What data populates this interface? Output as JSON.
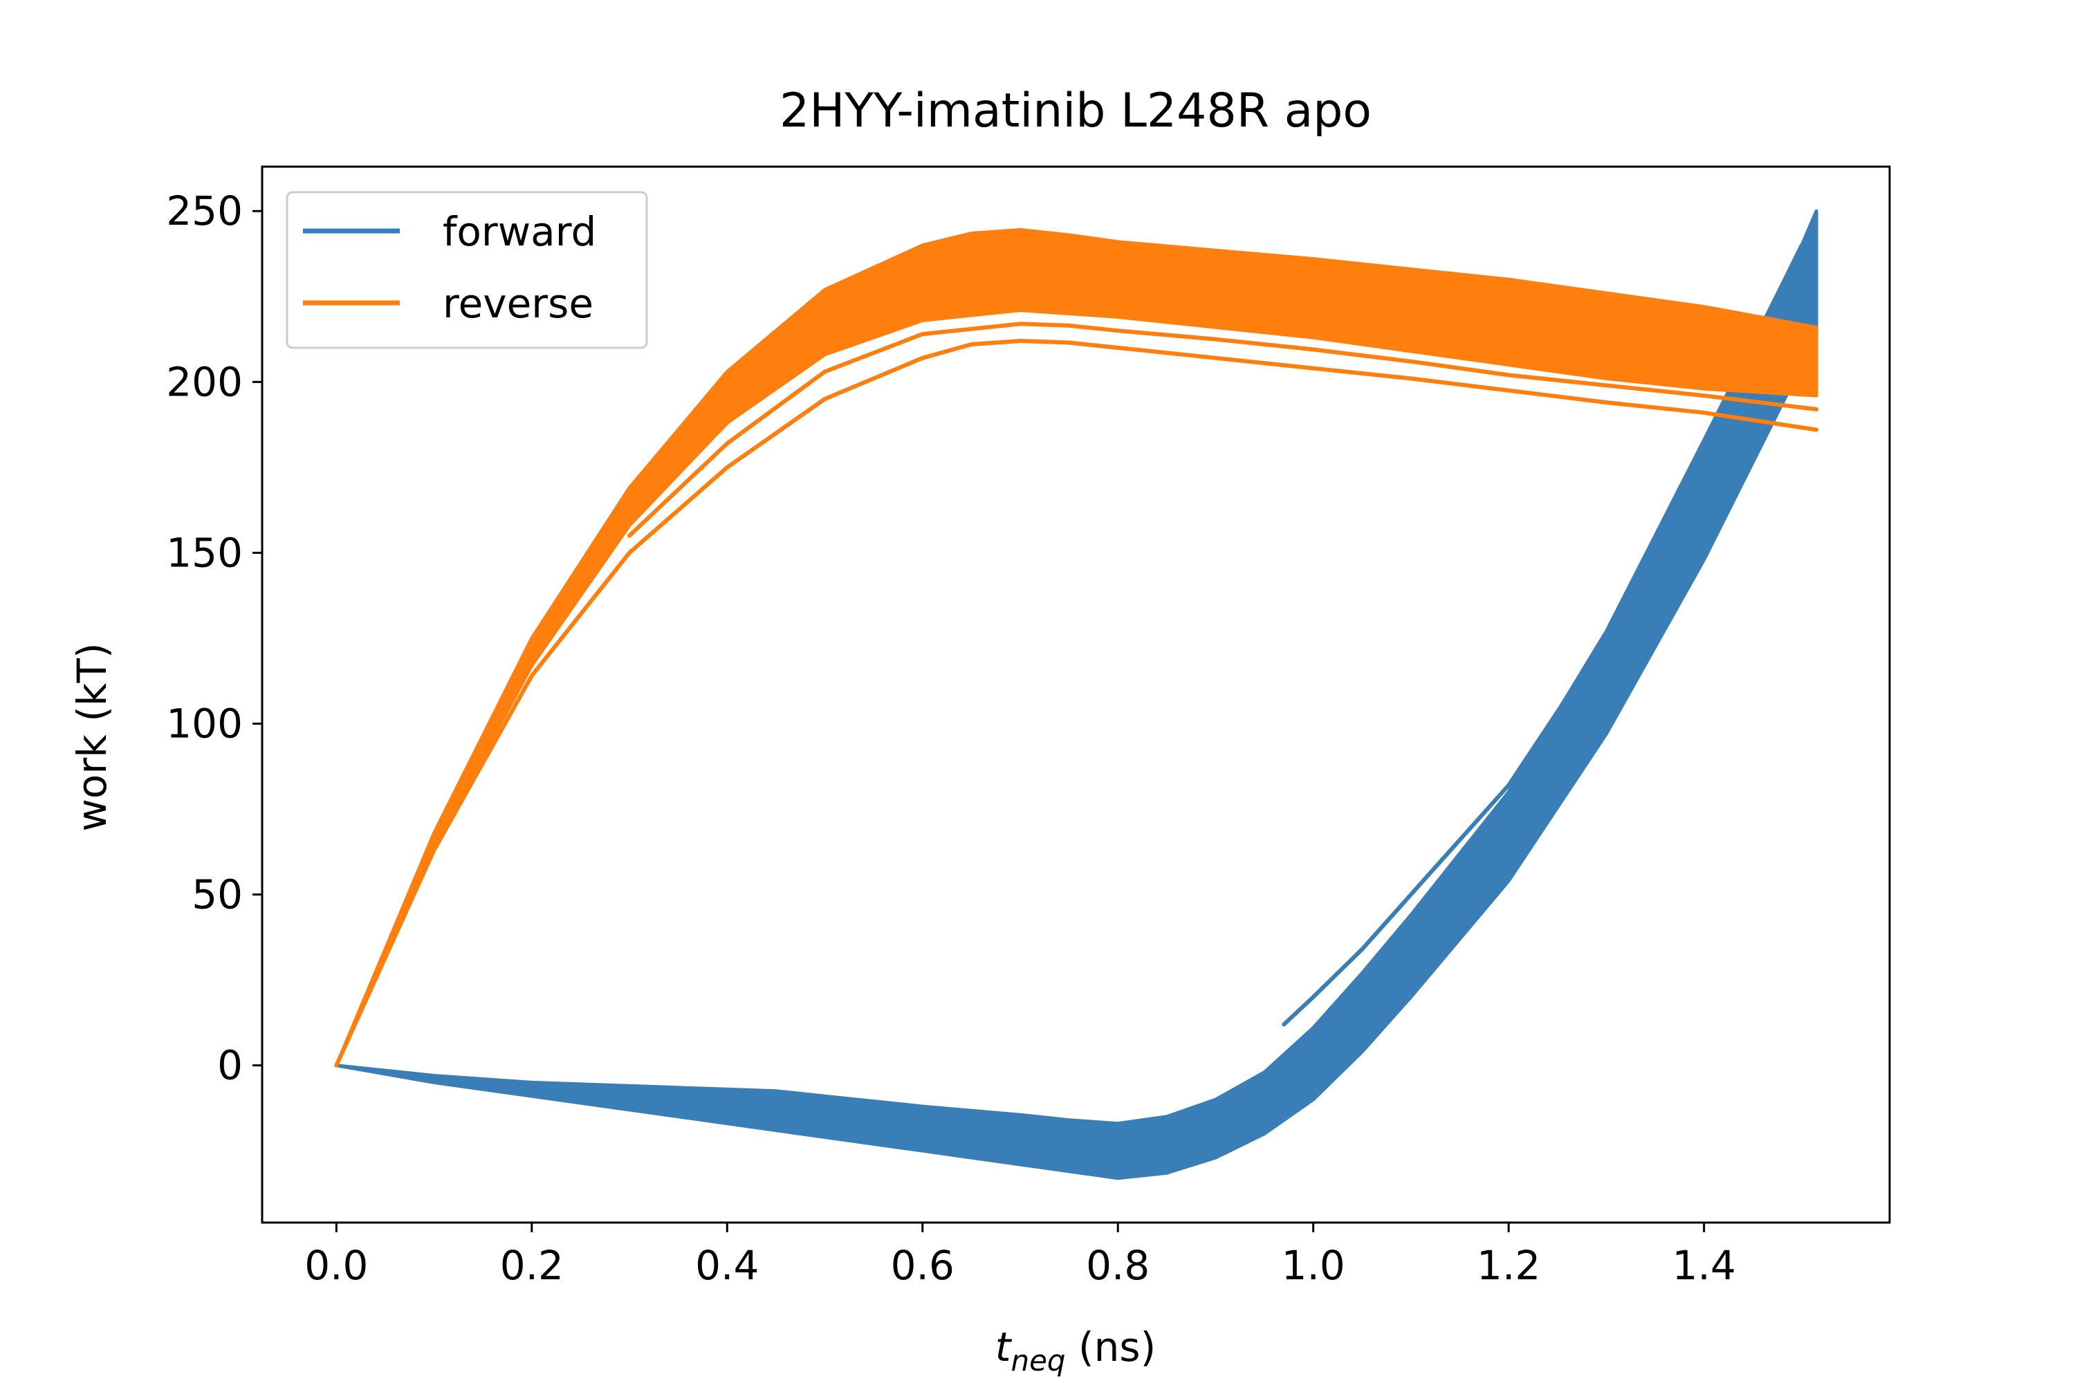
{
  "chart_data": {
    "type": "line",
    "title": "2HYY-imatinib L248R apo",
    "xlabel_main": "t",
    "xlabel_sub": "neq",
    "xlabel_units": " (ns)",
    "ylabel": "work (kT)",
    "xlim": [
      -0.076,
      1.59
    ],
    "ylim": [
      -46,
      263
    ],
    "xticks": [
      0.0,
      0.2,
      0.4,
      0.6,
      0.8,
      1.0,
      1.2,
      1.4
    ],
    "xtick_labels": [
      "0.0",
      "0.2",
      "0.4",
      "0.6",
      "0.8",
      "1.0",
      "1.2",
      "1.4"
    ],
    "yticks": [
      0,
      50,
      100,
      150,
      200,
      250
    ],
    "ytick_labels": [
      "0",
      "50",
      "100",
      "150",
      "200",
      "250"
    ],
    "grid": false,
    "legend_position": "upper-left",
    "series": [
      {
        "name": "forward",
        "color": "#3a7eb8",
        "band_upper": {
          "x": [
            0.0,
            0.1,
            0.2,
            0.3,
            0.4,
            0.45,
            0.5,
            0.6,
            0.7,
            0.75,
            0.8,
            0.85,
            0.9,
            0.95,
            1.0,
            1.05,
            1.1,
            1.2,
            1.3,
            1.4,
            1.5,
            1.515
          ],
          "y": [
            0,
            -3,
            -5,
            -6,
            -7,
            -7.5,
            -9,
            -12,
            -14.5,
            -16,
            -17,
            -15,
            -10,
            -2,
            11,
            27,
            44,
            80,
            127,
            183,
            240,
            250
          ]
        },
        "band_lower": {
          "x": [
            0.0,
            0.1,
            0.2,
            0.3,
            0.4,
            0.5,
            0.6,
            0.7,
            0.75,
            0.8,
            0.85,
            0.9,
            0.95,
            1.0,
            1.05,
            1.1,
            1.2,
            1.3,
            1.4,
            1.5,
            1.515
          ],
          "y": [
            0,
            -5,
            -9,
            -13,
            -17,
            -21,
            -25,
            -29,
            -31,
            -33,
            -31.5,
            -27,
            -20,
            -10,
            4,
            20,
            54,
            97,
            148,
            205,
            214
          ]
        },
        "outlier_traces": [
          {
            "x": [
              0.97,
              1.0,
              1.05,
              1.1,
              1.2,
              1.3,
              1.4,
              1.5
            ],
            "y": [
              12,
              20,
              34,
              50,
              82,
              125,
              182,
              240
            ]
          }
        ]
      },
      {
        "name": "reverse",
        "color": "#ff7f0e",
        "band_upper": {
          "x": [
            0.0,
            0.1,
            0.2,
            0.3,
            0.4,
            0.5,
            0.6,
            0.65,
            0.7,
            0.75,
            0.8,
            0.9,
            1.0,
            1.1,
            1.2,
            1.3,
            1.4,
            1.515
          ],
          "y": [
            0,
            68,
            125,
            169,
            203,
            227,
            240,
            243.5,
            244.5,
            243,
            241,
            238.5,
            236,
            233,
            230,
            226,
            222,
            216
          ]
        },
        "band_lower": {
          "x": [
            0.0,
            0.1,
            0.2,
            0.3,
            0.4,
            0.5,
            0.6,
            0.7,
            0.75,
            0.8,
            0.9,
            1.0,
            1.1,
            1.2,
            1.3,
            1.4,
            1.515
          ],
          "y": [
            0,
            64,
            117,
            158,
            188,
            208,
            218,
            221,
            220,
            219,
            216,
            213,
            209,
            205,
            201,
            198,
            196
          ]
        },
        "outlier_traces": [
          {
            "x": [
              0.0,
              0.1,
              0.2,
              0.3,
              0.4,
              0.5,
              0.6,
              0.65,
              0.7,
              0.75,
              0.8,
              0.9,
              1.0,
              1.1,
              1.2,
              1.3,
              1.4,
              1.515
            ],
            "y": [
              0,
              63,
              114,
              150,
              175,
              195,
              207,
              211,
              212,
              211.5,
              210,
              207,
              204,
              201,
              197.5,
              194,
              191,
              186
            ]
          },
          {
            "x": [
              0.3,
              0.4,
              0.5,
              0.6,
              0.7,
              0.75,
              0.8,
              0.9,
              1.0,
              1.1,
              1.2,
              1.3,
              1.4,
              1.515
            ],
            "y": [
              155,
              182,
              203,
              214,
              217,
              216.5,
              215,
              212.5,
              209.5,
              206,
              202,
              199,
              196,
              192
            ]
          }
        ]
      }
    ]
  }
}
